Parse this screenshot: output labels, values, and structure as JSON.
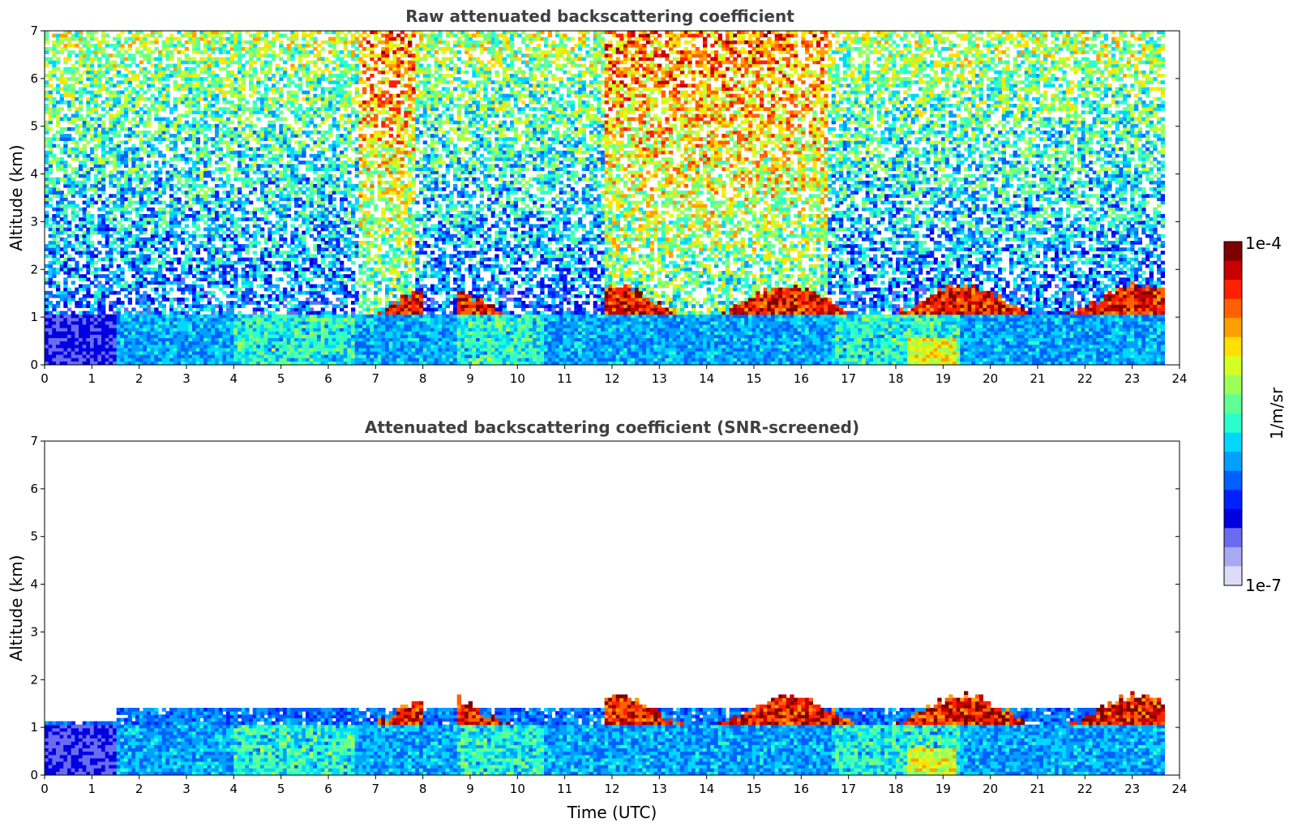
{
  "chart_data": [
    {
      "type": "heatmap",
      "title": "Raw attenuated backscattering coefficient",
      "ylabel": "Altitude (km)",
      "xlabel": "",
      "xlim": [
        0,
        24
      ],
      "ylim": [
        0,
        7
      ],
      "xticks": [
        "0",
        "1",
        "2",
        "3",
        "4",
        "5",
        "6",
        "7",
        "8",
        "9",
        "10",
        "11",
        "12",
        "13",
        "14",
        "15",
        "16",
        "17",
        "18",
        "19",
        "20",
        "21",
        "22",
        "23",
        "24"
      ],
      "yticks": [
        "0",
        "1",
        "2",
        "3",
        "4",
        "5",
        "6",
        "7"
      ],
      "data_end_time": 23.6,
      "description_bands": [
        {
          "t0": 0,
          "t1": 1.5,
          "level": "low"
        },
        {
          "t0": 6.6,
          "t1": 7.8,
          "level": "high"
        },
        {
          "t0": 11.8,
          "t1": 16.5,
          "level": "high"
        }
      ],
      "cloud_base_km": 1.0,
      "cloud_top_km": 1.6
    },
    {
      "type": "heatmap",
      "title": "Attenuated backscattering coefficient (SNR-screened)",
      "ylabel": "Altitude (km)",
      "xlabel": "Time (UTC)",
      "xlim": [
        0,
        24
      ],
      "ylim": [
        0,
        7
      ],
      "xticks": [
        "0",
        "1",
        "2",
        "3",
        "4",
        "5",
        "6",
        "7",
        "8",
        "9",
        "10",
        "11",
        "12",
        "13",
        "14",
        "15",
        "16",
        "17",
        "18",
        "19",
        "20",
        "21",
        "22",
        "23",
        "24"
      ],
      "yticks": [
        "0",
        "1",
        "2",
        "3",
        "4",
        "5",
        "6",
        "7"
      ],
      "data_end_time": 23.6,
      "cloud_base_km": 1.0,
      "cloud_top_km": 1.6
    }
  ],
  "colorbar": {
    "label": "1/m/sr",
    "max_label": "1e-4",
    "min_label": "1e-7",
    "colors": [
      "#7f0000",
      "#c80000",
      "#ff2000",
      "#ff6000",
      "#ffa000",
      "#ffe000",
      "#d4ff22",
      "#9cff5a",
      "#60ff96",
      "#2affcc",
      "#00d8ff",
      "#00a0ff",
      "#0060ff",
      "#0020ff",
      "#0000e0",
      "#6b6bf0",
      "#a8a8f4",
      "#dcdcfa"
    ]
  }
}
